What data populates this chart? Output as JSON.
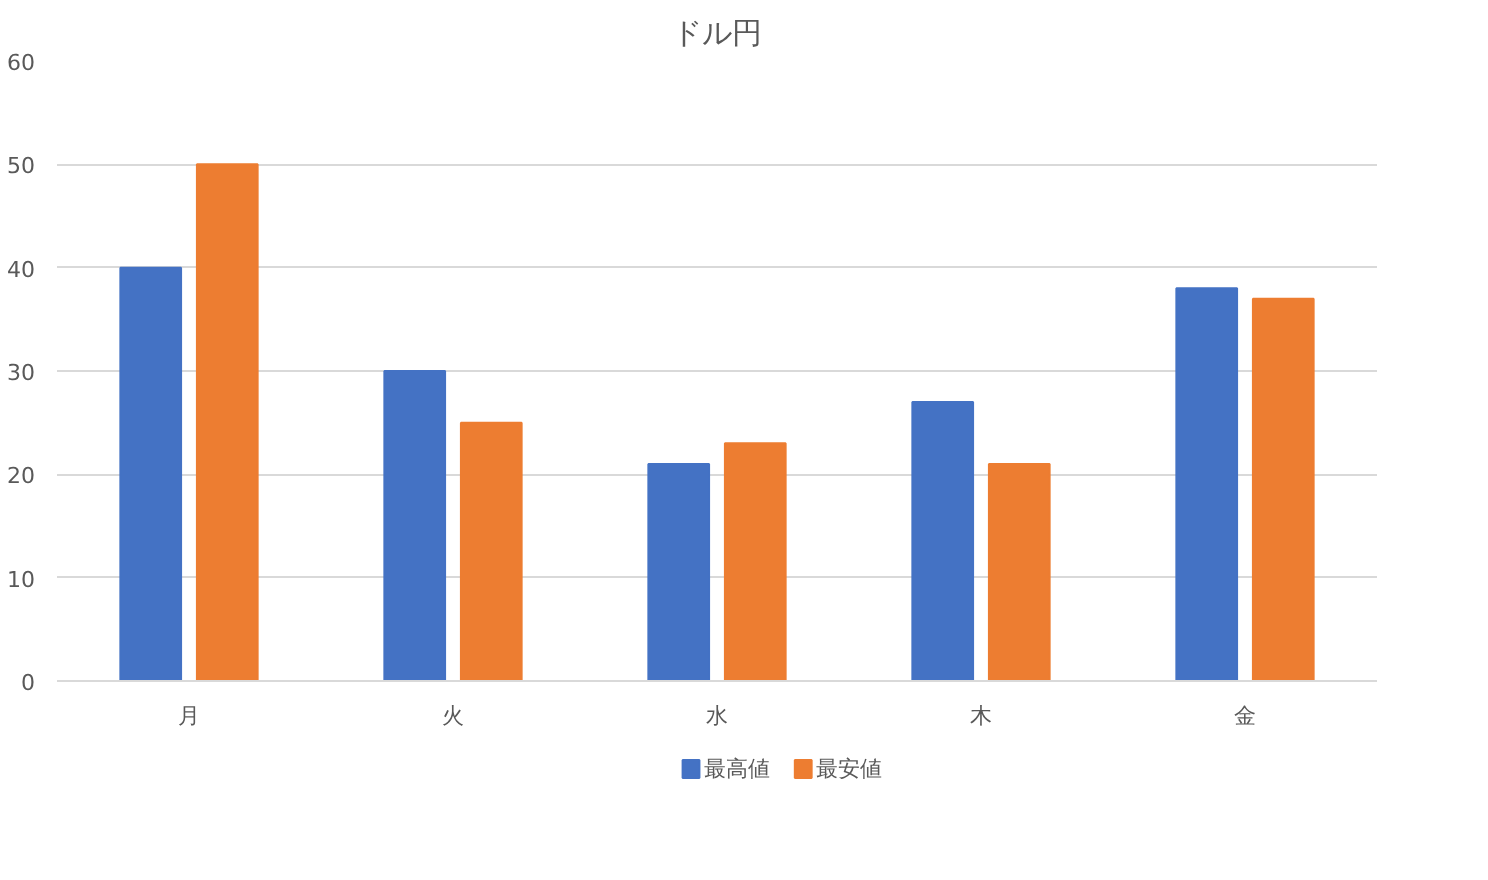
{
  "chart_data": {
    "type": "bar",
    "title": "ドル円",
    "categories": [
      "月",
      "火",
      "水",
      "木",
      "金"
    ],
    "series": [
      {
        "name": "最高値",
        "color": "#4472c4",
        "values": [
          40,
          30,
          21,
          27,
          38
        ]
      },
      {
        "name": "最安値",
        "color": "#ed7d31",
        "values": [
          50,
          25,
          23,
          21,
          37
        ]
      }
    ],
    "ylim": [
      0,
      60
    ],
    "yticks": [
      0,
      10,
      20,
      30,
      40,
      50,
      60
    ],
    "grid": "y",
    "legend": "bottom"
  }
}
